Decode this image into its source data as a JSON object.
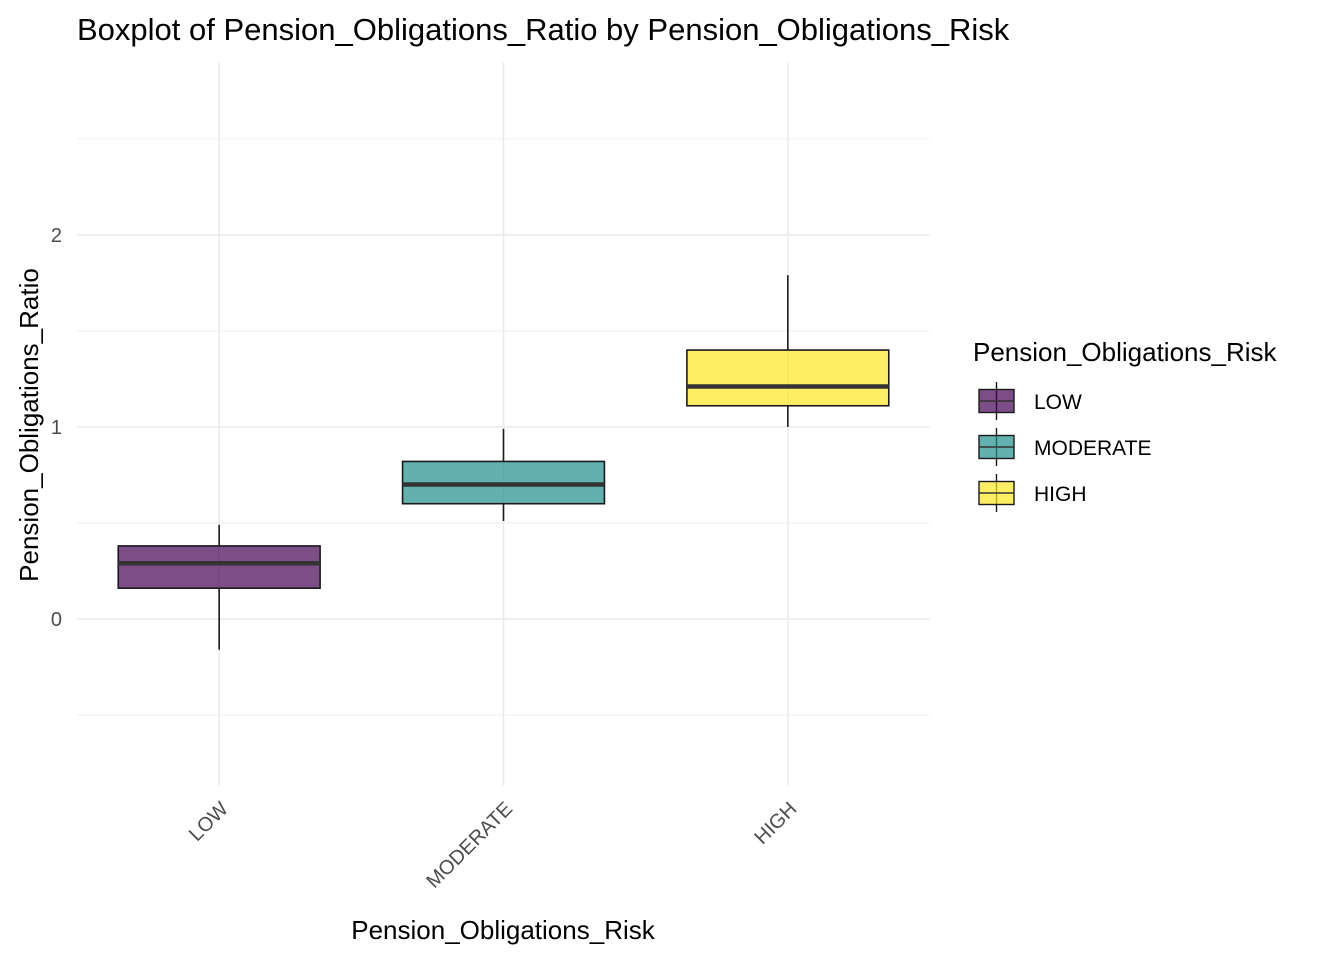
{
  "chart_data": {
    "type": "boxplot",
    "title": "Boxplot of Pension_Obligations_Ratio by Pension_Obligations_Risk",
    "xlabel": "Pension_Obligations_Risk",
    "ylabel": "Pension_Obligations_Ratio",
    "categories": [
      "LOW",
      "MODERATE",
      "HIGH"
    ],
    "y_ticks": [
      0,
      1,
      2
    ],
    "y_tick_labels": [
      "0",
      "1",
      "2"
    ],
    "ylim": [
      -0.87,
      2.9
    ],
    "grid": true,
    "boxes": [
      {
        "category": "LOW",
        "whisker_low": -0.16,
        "q1": 0.16,
        "median": 0.29,
        "q3": 0.38,
        "whisker_high": 0.49,
        "color": "#440154"
      },
      {
        "category": "MODERATE",
        "whisker_low": 0.51,
        "q1": 0.6,
        "median": 0.7,
        "q3": 0.82,
        "whisker_high": 0.99,
        "color": "#21908C"
      },
      {
        "category": "HIGH",
        "whisker_low": 1.0,
        "q1": 1.11,
        "median": 1.21,
        "q3": 1.4,
        "whisker_high": 1.79,
        "color": "#FDE725"
      }
    ],
    "legend": {
      "title": "Pension_Obligations_Risk",
      "position": "right",
      "entries": [
        "LOW",
        "MODERATE",
        "HIGH"
      ]
    }
  }
}
